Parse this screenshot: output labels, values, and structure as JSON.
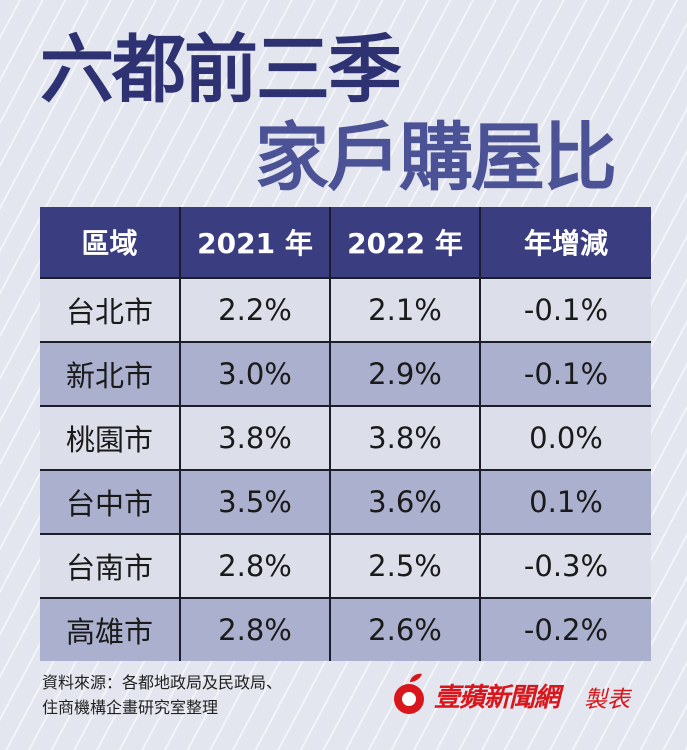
{
  "title": {
    "line1": "六都前三季",
    "line2": "家戶購屋比"
  },
  "table": {
    "headers": [
      "區域",
      "2021 年",
      "2022 年",
      "年增減"
    ],
    "rows": [
      [
        "台北市",
        "2.2%",
        "2.1%",
        "-0.1%"
      ],
      [
        "新北市",
        "3.0%",
        "2.9%",
        "-0.1%"
      ],
      [
        "桃園市",
        "3.8%",
        "3.8%",
        "0.0%"
      ],
      [
        "台中市",
        "3.5%",
        "3.6%",
        "0.1%"
      ],
      [
        "台南市",
        "2.8%",
        "2.5%",
        "-0.3%"
      ],
      [
        "高雄市",
        "2.8%",
        "2.6%",
        "-0.2%"
      ]
    ]
  },
  "source": {
    "line1": "資料來源：各都地政局及民政局、",
    "line2": "住商機構企畫研究室整理"
  },
  "brand": {
    "name": "壹蘋新聞網",
    "suffix": "製表",
    "logo_icon": "apple-logo-icon",
    "color": "#d8161b"
  },
  "colors": {
    "title_dark": "#2e3272",
    "title_light": "#4b5296",
    "header_bg": "#3a3e80",
    "row_light": "#dcdee9",
    "row_dark": "#aab0cd"
  }
}
